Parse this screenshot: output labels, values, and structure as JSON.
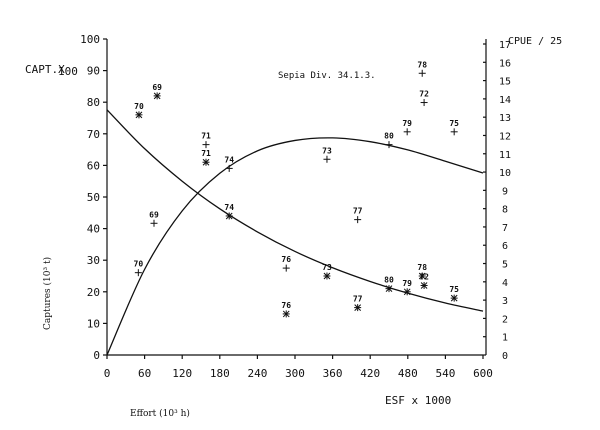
{
  "chart_data": {
    "type": "scatter",
    "title": "Sepia Div. 34.1.3.",
    "xlabel": "Effort (10³ h)",
    "xlabel_axis": "ESF x 1000",
    "ylabel": "Captures (10³ t)",
    "ylabel_left_axis": "CAPT.X",
    "ylabel_right": "CPUE / 25",
    "stray_label": "100",
    "xlim": [
      0,
      600
    ],
    "ylim_left": [
      0,
      100
    ],
    "ylim_right": [
      0,
      17
    ],
    "x_ticks": [
      0,
      60,
      120,
      180,
      240,
      300,
      360,
      420,
      480,
      540,
      600
    ],
    "y_ticks_left": [
      0,
      10,
      20,
      30,
      40,
      50,
      60,
      70,
      80,
      90,
      100
    ],
    "y_ticks_right": [
      0,
      1,
      2,
      3,
      4,
      5,
      6,
      7,
      8,
      9,
      10,
      11,
      12,
      13,
      14,
      15,
      16,
      17
    ],
    "grid": false,
    "series": [
      {
        "name": "CAPT.X",
        "marker": "asterisk",
        "axis": "left",
        "points": [
          {
            "label": "70",
            "x": 51,
            "y": 76
          },
          {
            "label": "69",
            "x": 80,
            "y": 82
          },
          {
            "label": "71",
            "x": 158,
            "y": 61
          },
          {
            "label": "74",
            "x": 195,
            "y": 44
          },
          {
            "label": "76",
            "x": 286,
            "y": 13
          },
          {
            "label": "73",
            "x": 351,
            "y": 25
          },
          {
            "label": "77",
            "x": 400,
            "y": 15
          },
          {
            "label": "80",
            "x": 450,
            "y": 21
          },
          {
            "label": "79",
            "x": 479,
            "y": 20
          },
          {
            "label": "78",
            "x": 503,
            "y": 25
          },
          {
            "label": "72",
            "x": 506,
            "y": 22
          },
          {
            "label": "75",
            "x": 554,
            "y": 18
          }
        ]
      },
      {
        "name": "CPUE / 25",
        "marker": "plus",
        "axis": "right",
        "points": [
          {
            "label": "70",
            "x": 50,
            "y": 4.5
          },
          {
            "label": "69",
            "x": 75,
            "y": 7.2
          },
          {
            "label": "71",
            "x": 158,
            "y": 11.5
          },
          {
            "label": "74",
            "x": 195,
            "y": 10.2
          },
          {
            "label": "76",
            "x": 286,
            "y": 4.75
          },
          {
            "label": "73",
            "x": 351,
            "y": 10.7
          },
          {
            "label": "77",
            "x": 400,
            "y": 7.4
          },
          {
            "label": "80",
            "x": 450,
            "y": 11.5
          },
          {
            "label": "79",
            "x": 479,
            "y": 12.2
          },
          {
            "label": "78",
            "x": 503,
            "y": 15.4
          },
          {
            "label": "72",
            "x": 506,
            "y": 13.8
          },
          {
            "label": "75",
            "x": 554,
            "y": 12.2
          }
        ]
      }
    ],
    "curves": [
      {
        "axis": "left",
        "x": [
          0,
          60,
          120,
          180,
          240,
          300,
          360,
          420,
          480,
          540,
          600
        ],
        "y": [
          0,
          27.1,
          45.6,
          57.5,
          64.6,
          67.9,
          68.7,
          67.5,
          64.9,
          61.3,
          57.6
        ]
      },
      {
        "axis": "right",
        "x": [
          0,
          60,
          120,
          180,
          240,
          300,
          360,
          420,
          480,
          540,
          600
        ],
        "y": [
          13.4,
          11.28,
          9.5,
          7.99,
          6.73,
          5.66,
          4.77,
          4.02,
          3.38,
          2.84,
          2.4
        ]
      }
    ]
  }
}
